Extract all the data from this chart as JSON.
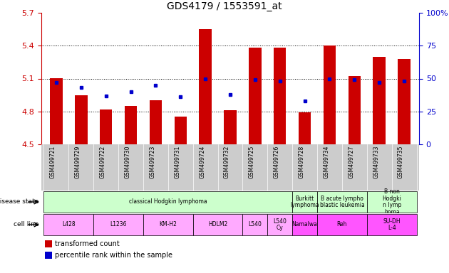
{
  "title": "GDS4179 / 1553591_at",
  "samples": [
    "GSM499721",
    "GSM499729",
    "GSM499722",
    "GSM499730",
    "GSM499723",
    "GSM499731",
    "GSM499724",
    "GSM499732",
    "GSM499725",
    "GSM499726",
    "GSM499728",
    "GSM499734",
    "GSM499727",
    "GSM499733",
    "GSM499735"
  ],
  "bar_values": [
    5.1,
    4.95,
    4.82,
    4.85,
    4.9,
    4.75,
    5.55,
    4.81,
    5.38,
    5.38,
    4.79,
    5.4,
    5.12,
    5.3,
    5.28
  ],
  "dot_values": [
    47,
    43,
    37,
    40,
    45,
    36,
    50,
    38,
    49,
    48,
    33,
    50,
    49,
    47,
    48
  ],
  "ylim_left": [
    4.5,
    5.7
  ],
  "ylim_right": [
    0,
    100
  ],
  "yticks_left": [
    4.5,
    4.8,
    5.1,
    5.4,
    5.7
  ],
  "yticks_right": [
    0,
    25,
    50,
    75,
    100
  ],
  "ytick_labels_right": [
    "0",
    "25",
    "50",
    "75",
    "100%"
  ],
  "bar_color": "#cc0000",
  "dot_color": "#0000cc",
  "bar_bottom": 4.5,
  "disease_state_groups": [
    {
      "label": "classical Hodgkin lymphoma",
      "start": 0,
      "end": 9,
      "color": "#ccffcc"
    },
    {
      "label": "Burkitt\nlymphoma",
      "start": 10,
      "end": 10,
      "color": "#ccffcc"
    },
    {
      "label": "B acute lympho\nblastic leukemia",
      "start": 11,
      "end": 12,
      "color": "#ccffcc"
    },
    {
      "label": "B non\nHodgki\nn lymp\nhoma",
      "start": 13,
      "end": 14,
      "color": "#ccffcc"
    }
  ],
  "cell_line_groups": [
    {
      "label": "L428",
      "start": 0,
      "end": 1,
      "color": "#ffaaff"
    },
    {
      "label": "L1236",
      "start": 2,
      "end": 3,
      "color": "#ffaaff"
    },
    {
      "label": "KM-H2",
      "start": 4,
      "end": 5,
      "color": "#ffaaff"
    },
    {
      "label": "HDLM2",
      "start": 6,
      "end": 7,
      "color": "#ffaaff"
    },
    {
      "label": "L540",
      "start": 8,
      "end": 8,
      "color": "#ffaaff"
    },
    {
      "label": "L540\nCy",
      "start": 9,
      "end": 9,
      "color": "#ffaaff"
    },
    {
      "label": "Namalwa",
      "start": 10,
      "end": 10,
      "color": "#ff55ff"
    },
    {
      "label": "Reh",
      "start": 11,
      "end": 12,
      "color": "#ff55ff"
    },
    {
      "label": "SU-DH\nL-4",
      "start": 13,
      "end": 14,
      "color": "#ff55ff"
    }
  ],
  "left_axis_label_color": "#cc0000",
  "right_axis_label_color": "#0000cc",
  "bg_color": "#ffffff",
  "header_bg": "#cccccc",
  "grid_dotted_color": "#000000"
}
